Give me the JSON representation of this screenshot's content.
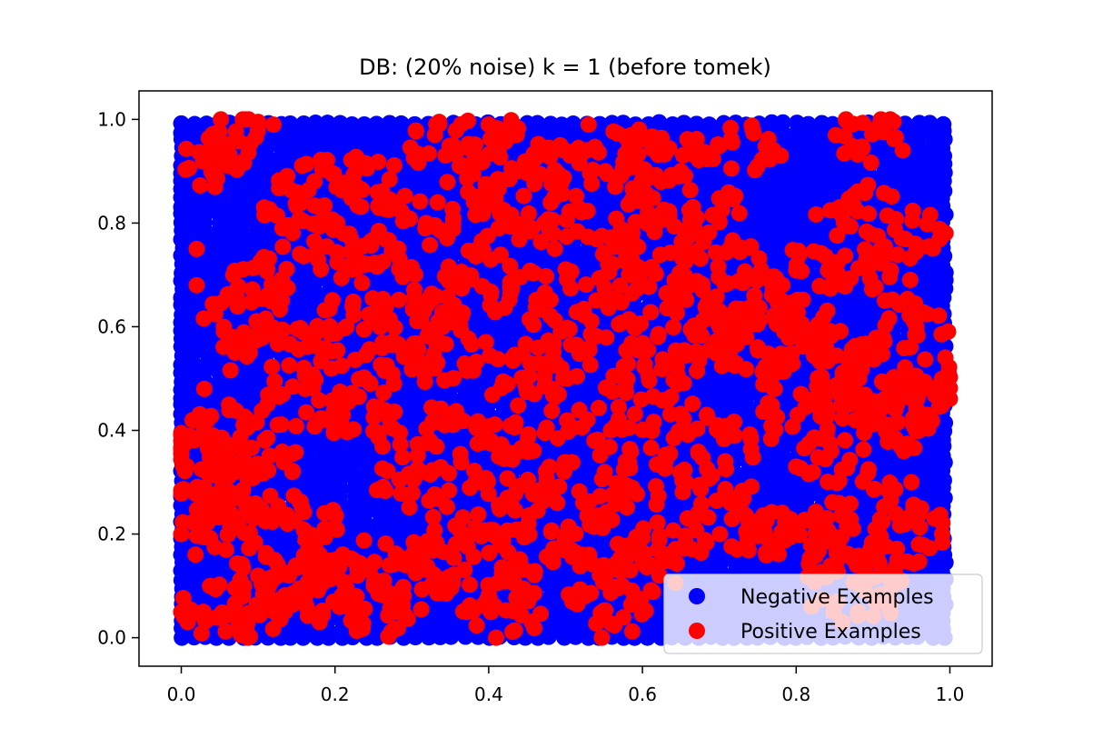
{
  "chart_data": {
    "type": "scatter",
    "title": "DB: (20% noise) k = 1 (before tomek)",
    "xlabel": "",
    "ylabel": "",
    "xlim": [
      -0.055,
      1.055
    ],
    "ylim": [
      -0.055,
      1.055
    ],
    "xticks": [
      "0.0",
      "0.2",
      "0.4",
      "0.6",
      "0.8",
      "1.0"
    ],
    "yticks": [
      "0.0",
      "0.2",
      "0.4",
      "0.6",
      "0.8",
      "1.0"
    ],
    "grid": false,
    "legend_position": "lower-right",
    "colors": {
      "negative": "#0000ff",
      "positive": "#ff0000"
    },
    "series": [
      {
        "name": "Negative Examples",
        "color": "#0000ff",
        "distribution": "uniform grid covering [0,1] x [0,1]",
        "grid_step": 0.016,
        "x_range": [
          0,
          1
        ],
        "y_range": [
          0,
          1
        ]
      },
      {
        "name": "Positive Examples",
        "color": "#ff0000",
        "region_points": [
          [
            0.3,
            0.6
          ],
          [
            0.35,
            0.55
          ],
          [
            0.4,
            0.7
          ],
          [
            0.45,
            0.5
          ],
          [
            0.5,
            0.55
          ],
          [
            0.55,
            0.6
          ],
          [
            0.6,
            0.5
          ],
          [
            0.65,
            0.55
          ],
          [
            0.7,
            0.6
          ],
          [
            0.75,
            0.55
          ],
          [
            0.8,
            0.6
          ],
          [
            0.25,
            0.7
          ],
          [
            0.2,
            0.75
          ],
          [
            0.15,
            0.8
          ],
          [
            0.3,
            0.8
          ],
          [
            0.4,
            0.8
          ],
          [
            0.5,
            0.8
          ],
          [
            0.6,
            0.75
          ],
          [
            0.7,
            0.75
          ],
          [
            0.8,
            0.7
          ],
          [
            0.9,
            0.7
          ],
          [
            0.95,
            0.6
          ],
          [
            0.9,
            0.5
          ],
          [
            0.85,
            0.55
          ],
          [
            0.35,
            0.4
          ],
          [
            0.45,
            0.4
          ],
          [
            0.55,
            0.4
          ],
          [
            0.65,
            0.4
          ],
          [
            0.75,
            0.4
          ],
          [
            0.4,
            0.3
          ],
          [
            0.5,
            0.3
          ],
          [
            0.6,
            0.3
          ],
          [
            0.7,
            0.3
          ],
          [
            0.35,
            0.2
          ],
          [
            0.45,
            0.2
          ],
          [
            0.55,
            0.2
          ],
          [
            0.65,
            0.2
          ],
          [
            0.75,
            0.2
          ],
          [
            0.4,
            0.12
          ],
          [
            0.5,
            0.12
          ],
          [
            0.6,
            0.12
          ],
          [
            0.3,
            0.1
          ],
          [
            0.2,
            0.5
          ],
          [
            0.15,
            0.45
          ],
          [
            0.1,
            0.55
          ],
          [
            0.08,
            0.62
          ],
          [
            0.25,
            0.4
          ],
          [
            0.3,
            0.3
          ],
          [
            0.05,
            0.92
          ],
          [
            0.08,
            0.97
          ],
          [
            0.9,
            0.97
          ],
          [
            0.58,
            0.93
          ],
          [
            0.62,
            0.93
          ],
          [
            0.45,
            0.95
          ],
          [
            0.35,
            0.95
          ],
          [
            0.72,
            0.95
          ],
          [
            0.92,
            0.4
          ],
          [
            0.95,
            0.45
          ],
          [
            0.85,
            0.35
          ],
          [
            0.9,
            0.25
          ],
          [
            0.95,
            0.2
          ],
          [
            0.85,
            0.15
          ],
          [
            0.8,
            0.2
          ],
          [
            0.05,
            0.2
          ],
          [
            0.03,
            0.25
          ],
          [
            0.08,
            0.28
          ],
          [
            0.15,
            0.22
          ],
          [
            0.05,
            0.05
          ],
          [
            0.1,
            0.05
          ],
          [
            0.15,
            0.08
          ],
          [
            0.2,
            0.1
          ],
          [
            0.25,
            0.05
          ],
          [
            0.02,
            0.35
          ],
          [
            0.05,
            0.4
          ],
          [
            0.1,
            0.35
          ],
          [
            0.55,
            0.7
          ],
          [
            0.45,
            0.65
          ],
          [
            0.65,
            0.65
          ],
          [
            0.75,
            0.65
          ],
          [
            0.35,
            0.65
          ],
          [
            0.2,
            0.6
          ],
          [
            0.28,
            0.52
          ],
          [
            0.6,
            0.85
          ],
          [
            0.68,
            0.82
          ],
          [
            0.5,
            0.9
          ],
          [
            0.4,
            0.88
          ],
          [
            0.25,
            0.88
          ],
          [
            0.18,
            0.88
          ],
          [
            0.12,
            0.7
          ],
          [
            0.88,
            0.82
          ],
          [
            0.95,
            0.78
          ],
          [
            0.85,
            0.45
          ],
          [
            0.8,
            0.5
          ],
          [
            0.98,
            0.5
          ],
          [
            0.3,
            0.15
          ],
          [
            0.42,
            0.05
          ],
          [
            0.55,
            0.05
          ],
          [
            0.2,
            0.15
          ],
          [
            0.12,
            0.12
          ],
          [
            0.88,
            0.08
          ],
          [
            0.92,
            0.15
          ]
        ],
        "region_radius": 0.055,
        "scattered_points": [
          [
            0.0,
            0.2
          ],
          [
            0.02,
            0.75
          ],
          [
            0.02,
            0.68
          ],
          [
            0.99,
            0.2
          ],
          [
            0.98,
            0.23
          ],
          [
            0.95,
            0.3
          ],
          [
            0.8,
            0.33
          ],
          [
            0.82,
            0.06
          ],
          [
            0.86,
            0.03
          ],
          [
            0.2,
            0.15
          ],
          [
            0.07,
            0.55
          ],
          [
            0.03,
            0.48
          ],
          [
            0.75,
            0.91
          ],
          [
            0.78,
            0.93
          ],
          [
            0.65,
            0.9
          ],
          [
            0.53,
            0.99
          ],
          [
            0.33,
            0.97
          ],
          [
            0.28,
            0.05
          ],
          [
            0.18,
            0.03
          ],
          [
            0.4,
            0.99
          ],
          [
            0.97,
            0.43
          ],
          [
            0.94,
            0.36
          ]
        ]
      }
    ],
    "legend": [
      {
        "label": "Negative Examples",
        "color": "#0000ff"
      },
      {
        "label": "Positive Examples",
        "color": "#ff0000"
      }
    ]
  }
}
